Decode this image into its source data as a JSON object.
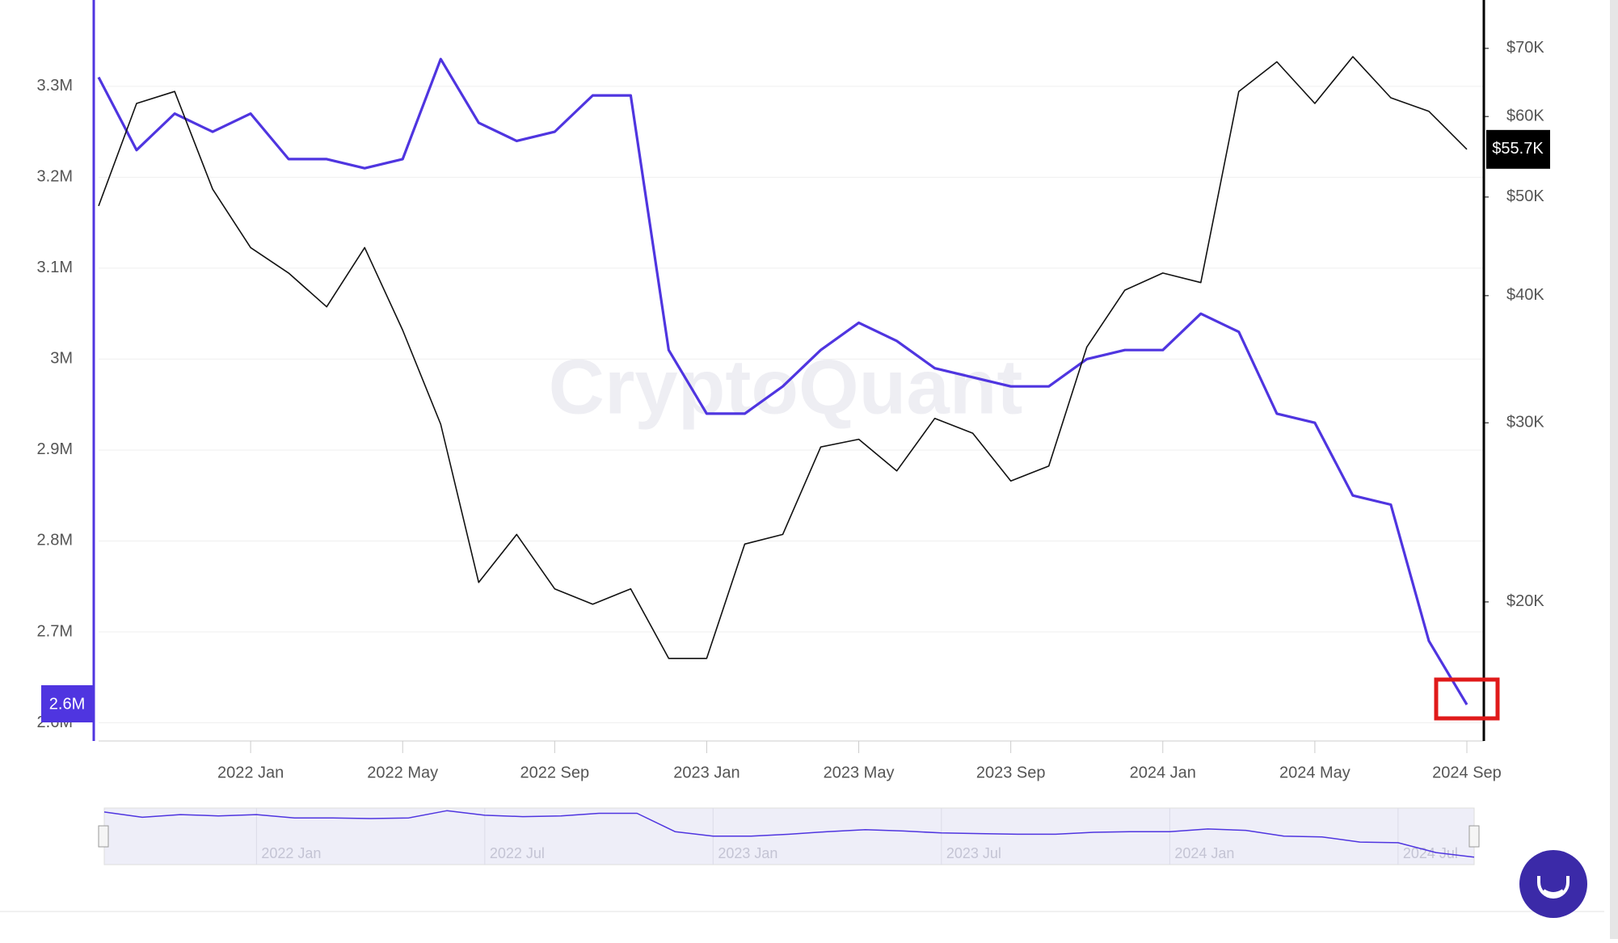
{
  "chart_data": {
    "type": "line",
    "watermark": "CryptoQuant",
    "x": [
      "2021-09",
      "2021-10",
      "2021-11",
      "2021-12",
      "2022-01",
      "2022-02",
      "2022-03",
      "2022-04",
      "2022-05",
      "2022-06",
      "2022-07",
      "2022-08",
      "2022-09",
      "2022-10",
      "2022-11",
      "2022-12",
      "2023-01",
      "2023-02",
      "2023-03",
      "2023-04",
      "2023-05",
      "2023-06",
      "2023-07",
      "2023-08",
      "2023-09",
      "2023-10",
      "2023-11",
      "2023-12",
      "2024-01",
      "2024-02",
      "2024-03",
      "2024-04",
      "2024-05",
      "2024-06",
      "2024-07",
      "2024-08",
      "2024-09"
    ],
    "xlim": [
      "2021-09",
      "2024-09"
    ],
    "xticks": [
      {
        "value": "2022-01",
        "label": "2022 Jan"
      },
      {
        "value": "2022-05",
        "label": "2022 May"
      },
      {
        "value": "2022-09",
        "label": "2022 Sep"
      },
      {
        "value": "2023-01",
        "label": "2023 Jan"
      },
      {
        "value": "2023-05",
        "label": "2023 May"
      },
      {
        "value": "2023-09",
        "label": "2023 Sep"
      },
      {
        "value": "2024-01",
        "label": "2024 Jan"
      },
      {
        "value": "2024-05",
        "label": "2024 May"
      },
      {
        "value": "2024-09",
        "label": "2024 Sep"
      }
    ],
    "ylim": [
      2580000,
      3395000
    ],
    "yticks": [
      {
        "value": 2600000,
        "label": "2.6M"
      },
      {
        "value": 2700000,
        "label": "2.7M"
      },
      {
        "value": 2800000,
        "label": "2.8M"
      },
      {
        "value": 2900000,
        "label": "2.9M"
      },
      {
        "value": 3000000,
        "label": "3M"
      },
      {
        "value": 3100000,
        "label": "3.1M"
      },
      {
        "value": 3200000,
        "label": "3.2M"
      },
      {
        "value": 3300000,
        "label": "3.3M"
      }
    ],
    "y2lim": [
      14600,
      78100
    ],
    "y2_log": true,
    "y2ticks": [
      {
        "value": 20000,
        "label": "$20K"
      },
      {
        "value": 30000,
        "label": "$30K"
      },
      {
        "value": 40000,
        "label": "$40K"
      },
      {
        "value": 50000,
        "label": "$50K"
      },
      {
        "value": 60000,
        "label": "$60K"
      },
      {
        "value": 70000,
        "label": "$70K"
      }
    ],
    "grid": true,
    "series": [
      {
        "color": "#4f35e0",
        "axis": "y",
        "current_label": "2.6M",
        "values": [
          3310000,
          3230000,
          3270000,
          3250000,
          3270000,
          3220000,
          3220000,
          3210000,
          3220000,
          3330000,
          3260000,
          3240000,
          3250000,
          3290000,
          3290000,
          3010000,
          2940000,
          2940000,
          2970000,
          3010000,
          3040000,
          3020000,
          2990000,
          2980000,
          2970000,
          2970000,
          3000000,
          3010000,
          3010000,
          3050000,
          3030000,
          2940000,
          2930000,
          2850000,
          2840000,
          2690000,
          2620000
        ]
      },
      {
        "color": "#111111",
        "axis": "y2",
        "current_label": "$55.7K",
        "values": [
          49000,
          61800,
          63500,
          50900,
          44600,
          42100,
          39000,
          44600,
          37000,
          29900,
          20900,
          23300,
          20600,
          19900,
          20600,
          17600,
          17600,
          22800,
          23300,
          28400,
          28900,
          26900,
          30300,
          29300,
          26300,
          27200,
          35600,
          40500,
          42100,
          41200,
          63500,
          67900,
          61800,
          68700,
          62600,
          60700,
          55700
        ]
      }
    ],
    "navigator_labels": [
      {
        "value": "2022-01",
        "label": "2022 Jan"
      },
      {
        "value": "2022-07",
        "label": "2022 Jul"
      },
      {
        "value": "2023-01",
        "label": "2023 Jan"
      },
      {
        "value": "2023-07",
        "label": "2023 Jul"
      },
      {
        "value": "2024-01",
        "label": "2024 Jan"
      },
      {
        "value": "2024-07",
        "label": "2024 Jul"
      }
    ]
  }
}
